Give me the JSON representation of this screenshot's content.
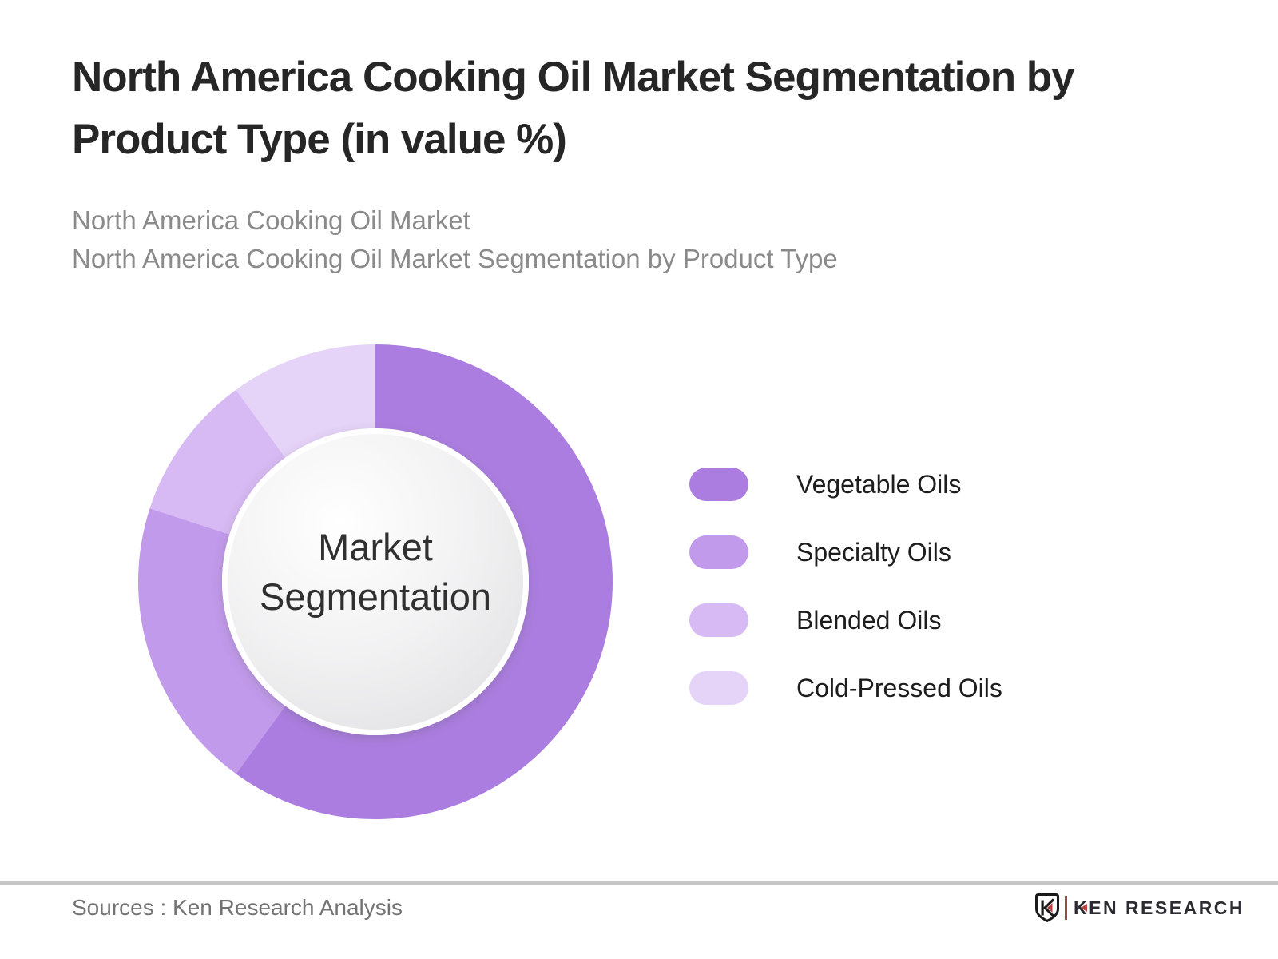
{
  "header": {
    "title_lines": [
      "North America Cooking Oil Market Segmentation by",
      "Product Type (in value %)"
    ],
    "subtitle_lines": [
      "North America Cooking Oil Market",
      "North America Cooking Oil Market Segmentation by Product Type"
    ]
  },
  "chart_data": {
    "type": "pie",
    "subtype": "donut",
    "title": "North America Cooking Oil Market Segmentation by Product Type (in value %)",
    "center_label": "Market Segmentation",
    "start_angle_deg": 0,
    "clockwise": true,
    "legend_position": "right",
    "series": [
      {
        "name": "Vegetable Oils",
        "value_pct": 60,
        "color": "#ab7de0"
      },
      {
        "name": "Specialty Oils",
        "value_pct": 20,
        "color": "#c19aeb"
      },
      {
        "name": "Blended Oils",
        "value_pct": 10,
        "color": "#d7b9f3"
      },
      {
        "name": "Cold-Pressed Oils",
        "value_pct": 10,
        "color": "#e5d3f8"
      }
    ],
    "geometry": {
      "outer_radius": 297,
      "inner_radius": 192,
      "center_circle_radius": 185
    },
    "colors": {
      "center_circle_edge": "#e3e3e5",
      "center_circle_highlight": "#ffffff"
    }
  },
  "footer": {
    "sources": "Sources : Ken Research Analysis",
    "logo_text": "KEN RESEARCH"
  }
}
